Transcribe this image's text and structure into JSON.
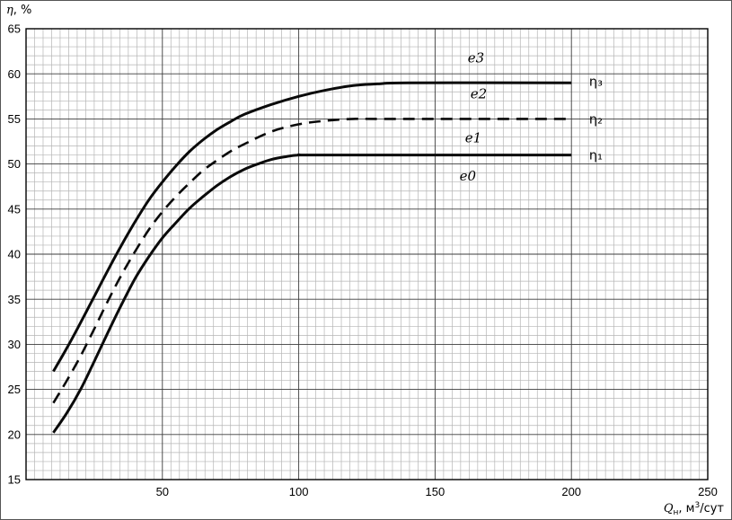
{
  "axes": {
    "y_title": {
      "symbol": "η",
      "rest": ", %"
    },
    "x_title": {
      "symbol": "Q",
      "sub": "н",
      "mid": ", м",
      "sup": "3",
      "post": "/сут"
    }
  },
  "colors": {
    "curve": "#0a0a0a",
    "grid_minor": "#b5b5b5",
    "grid_major": "#3c3c3c",
    "frame": "#000000",
    "text": "#000000"
  },
  "chart_data": {
    "type": "line",
    "title": "",
    "xlabel": "Qн, м³/сут",
    "ylabel": "η, %",
    "xlim": [
      0,
      250
    ],
    "ylim": [
      15,
      65
    ],
    "x_ticks": [
      50,
      100,
      150,
      200,
      250
    ],
    "y_ticks": [
      15,
      20,
      25,
      30,
      35,
      40,
      45,
      50,
      55,
      60,
      65
    ],
    "grid": "fine graph-paper: minor grid every 1 unit (y) / 3.125 units (x), dark major lines every 5 (y) / 50 (x)",
    "legend_position": "inline labels on curves",
    "series": [
      {
        "name": "η₃",
        "style": "solid",
        "points": [
          [
            10,
            27
          ],
          [
            15,
            29.6
          ],
          [
            20,
            32.4
          ],
          [
            25,
            35.3
          ],
          [
            30,
            38.2
          ],
          [
            35,
            41
          ],
          [
            40,
            43.6
          ],
          [
            45,
            46
          ],
          [
            50,
            48
          ],
          [
            55,
            49.8
          ],
          [
            60,
            51.4
          ],
          [
            65,
            52.7
          ],
          [
            70,
            53.8
          ],
          [
            75,
            54.7
          ],
          [
            80,
            55.5
          ],
          [
            90,
            56.6
          ],
          [
            100,
            57.5
          ],
          [
            110,
            58.2
          ],
          [
            120,
            58.7
          ],
          [
            130,
            58.9
          ],
          [
            140,
            59
          ],
          [
            200,
            59
          ]
        ]
      },
      {
        "name": "η₂",
        "style": "dashed",
        "points": [
          [
            10,
            23.5
          ],
          [
            15,
            26
          ],
          [
            20,
            28.7
          ],
          [
            25,
            31.7
          ],
          [
            30,
            34.8
          ],
          [
            35,
            37.7
          ],
          [
            40,
            40.3
          ],
          [
            45,
            42.7
          ],
          [
            50,
            44.7
          ],
          [
            55,
            46.4
          ],
          [
            60,
            47.9
          ],
          [
            65,
            49.3
          ],
          [
            70,
            50.4
          ],
          [
            75,
            51.4
          ],
          [
            80,
            52.2
          ],
          [
            90,
            53.6
          ],
          [
            100,
            54.4
          ],
          [
            110,
            54.8
          ],
          [
            120,
            55
          ],
          [
            130,
            55
          ],
          [
            200,
            55
          ]
        ]
      },
      {
        "name": "η₁",
        "style": "solid",
        "points": [
          [
            10,
            20.2
          ],
          [
            15,
            22.4
          ],
          [
            20,
            25
          ],
          [
            25,
            28.1
          ],
          [
            30,
            31.3
          ],
          [
            35,
            34.4
          ],
          [
            40,
            37.3
          ],
          [
            45,
            39.7
          ],
          [
            50,
            41.8
          ],
          [
            55,
            43.5
          ],
          [
            60,
            45.1
          ],
          [
            65,
            46.4
          ],
          [
            70,
            47.6
          ],
          [
            75,
            48.6
          ],
          [
            80,
            49.4
          ],
          [
            85,
            50
          ],
          [
            90,
            50.5
          ],
          [
            95,
            50.8
          ],
          [
            100,
            51
          ],
          [
            110,
            51
          ],
          [
            200,
            51
          ]
        ]
      }
    ],
    "annotations": [
      {
        "text": "e3",
        "x": 165,
        "y": 61.8,
        "kind": "zone-label"
      },
      {
        "text": "e2",
        "x": 166,
        "y": 57.8,
        "kind": "zone-label"
      },
      {
        "text": "e1",
        "x": 164,
        "y": 52.9,
        "kind": "zone-label"
      },
      {
        "text": "e0",
        "x": 162,
        "y": 48.7,
        "kind": "zone-label"
      },
      {
        "text": "η₃",
        "x": 206.5,
        "y": 59.2,
        "kind": "curve-id"
      },
      {
        "text": "η₂",
        "x": 206.5,
        "y": 55.0,
        "kind": "curve-id"
      },
      {
        "text": "η₁",
        "x": 206.5,
        "y": 51.0,
        "kind": "curve-id"
      }
    ]
  }
}
